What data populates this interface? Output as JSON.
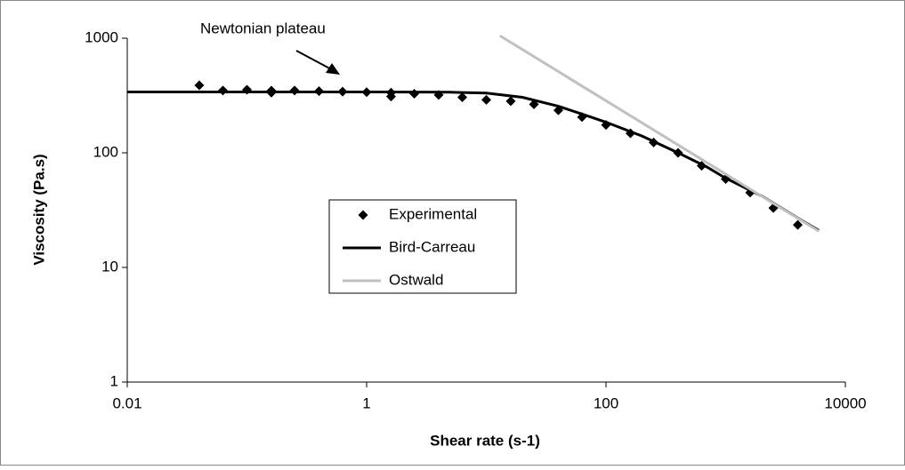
{
  "chart_data": {
    "type": "line",
    "annotation": "Newtonian plateau",
    "xlabel": "Shear rate (s-1)",
    "ylabel": "Viscosity (Pa.s)",
    "xscale": "log",
    "yscale": "log",
    "xlim": [
      0.01,
      10000
    ],
    "ylim": [
      1,
      1000
    ],
    "xticks": [
      0.01,
      1,
      100,
      10000
    ],
    "yticks": [
      1,
      10,
      100,
      1000
    ],
    "grid": false,
    "series": [
      {
        "name": "Experimental",
        "mode": "markers",
        "color": "#000000",
        "x": [
          0.04,
          0.063,
          0.1,
          0.16,
          0.16,
          0.25,
          0.4,
          0.63,
          1,
          1.6,
          1.6,
          2.5,
          4,
          6.3,
          10,
          16,
          25,
          40,
          63,
          100,
          160,
          250,
          400,
          630,
          1000,
          1600,
          2500,
          4000
        ],
        "values": [
          388,
          350,
          355,
          349,
          335,
          350,
          345,
          342,
          338,
          335,
          310,
          328,
          320,
          305,
          290,
          282,
          265,
          235,
          205,
          175,
          148,
          123,
          100,
          77,
          59,
          45,
          33,
          23.5
        ]
      },
      {
        "name": "Bird-Carreau",
        "mode": "lines",
        "color": "#000000",
        "x": [
          0.01,
          0.1,
          1,
          5,
          10,
          20,
          40,
          70,
          100,
          200,
          400,
          700,
          1000,
          2000,
          4000,
          6000
        ],
        "values": [
          340,
          340,
          340,
          338,
          332,
          305,
          255,
          210,
          185,
          140,
          100,
          75,
          60,
          42,
          27,
          21
        ]
      },
      {
        "name": "Ostwald",
        "mode": "lines",
        "color": "#c0c0c0",
        "x": [
          13,
          6000
        ],
        "values": [
          1050,
          20.7
        ]
      }
    ]
  }
}
